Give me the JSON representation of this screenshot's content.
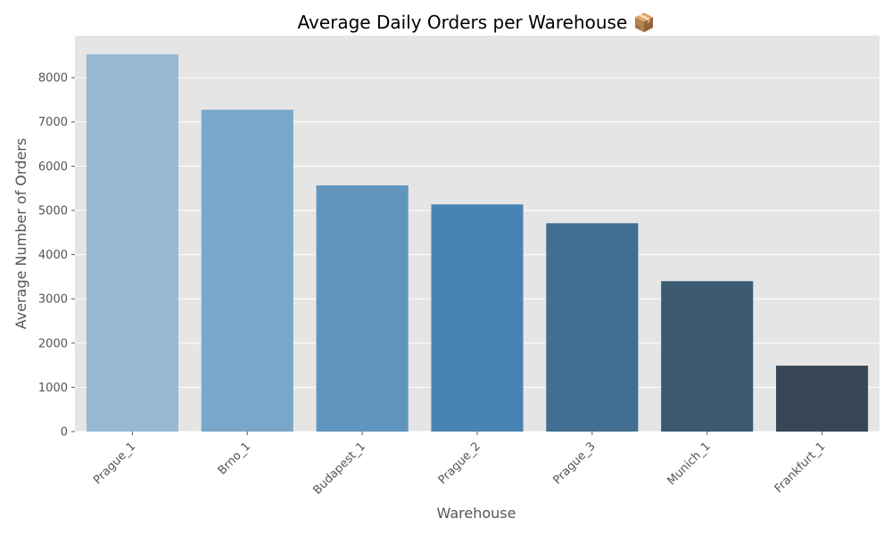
{
  "chart_data": {
    "type": "bar",
    "title": "Average Daily Orders per Warehouse 📦",
    "xlabel": "Warehouse",
    "ylabel": "Average Number of Orders",
    "categories": [
      "Prague_1",
      "Brno_1",
      "Budapest_1",
      "Prague_2",
      "Prague_3",
      "Munich_1",
      "Frankfurt_1"
    ],
    "values": [
      8530,
      7275,
      5565,
      5135,
      4710,
      3400,
      1490
    ],
    "yticks": [
      0,
      1000,
      2000,
      3000,
      4000,
      5000,
      6000,
      7000,
      8000
    ],
    "ylim": [
      0,
      8950
    ],
    "grid": true,
    "colors": {
      "plot_background": "#e5e5e5",
      "grid": "#ffffff",
      "bars": [
        "#98b9d4",
        "#7aa7c9",
        "#6096bd",
        "#4884b3",
        "#426f91",
        "#3b5a72",
        "#374755"
      ]
    }
  }
}
